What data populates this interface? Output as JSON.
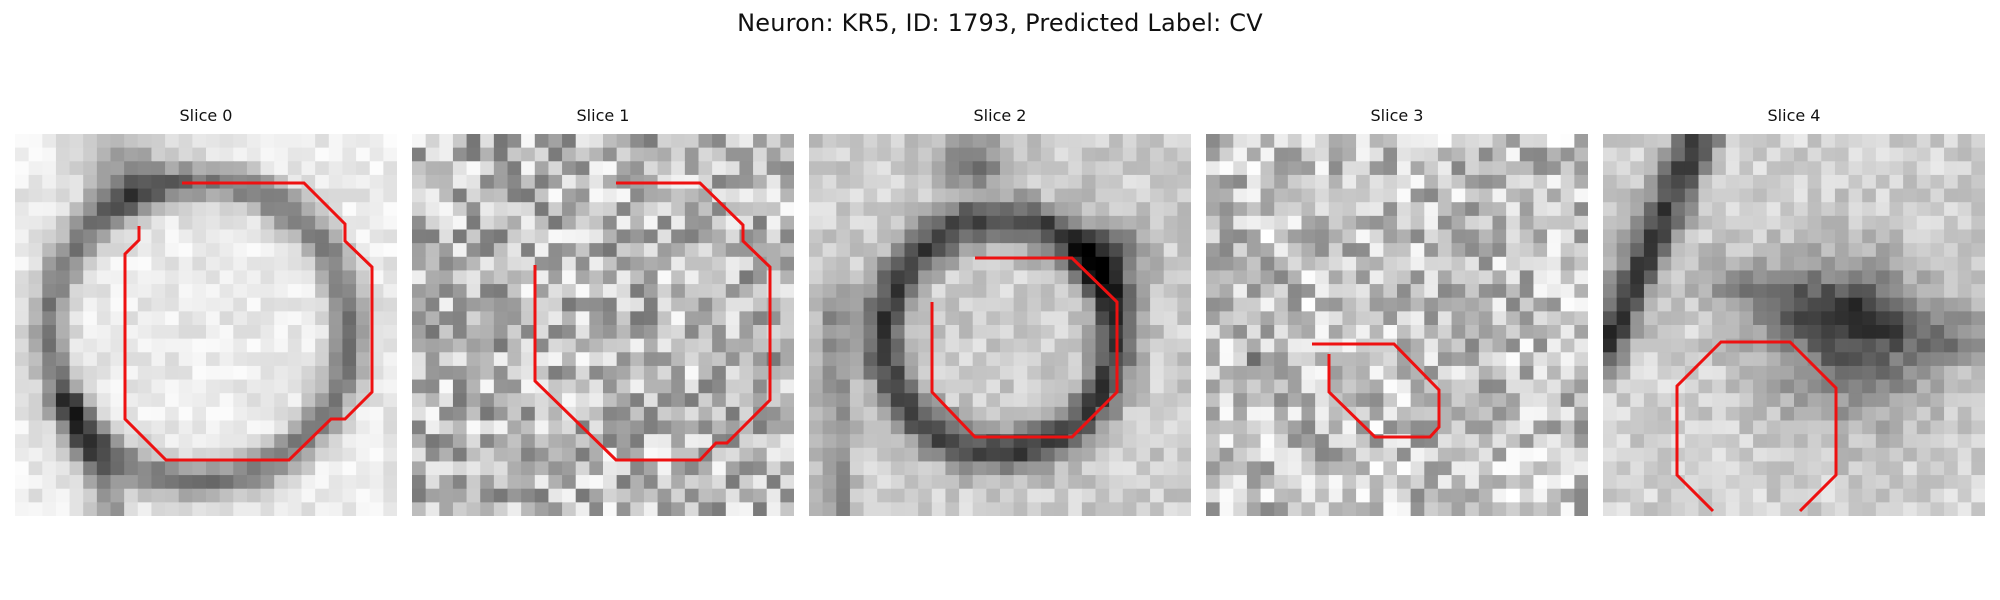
{
  "figure": {
    "title": "Neuron: KR5, ID: 1793, Predicted Label: CV"
  },
  "colors": {
    "contour": "#ee1111",
    "background": "#ffffff",
    "colormap": "grayscale"
  },
  "panels": [
    {
      "title": "Slice 0"
    },
    {
      "title": "Slice 1"
    },
    {
      "title": "Slice 2"
    },
    {
      "title": "Slice 3"
    },
    {
      "title": "Slice 4"
    }
  ]
}
